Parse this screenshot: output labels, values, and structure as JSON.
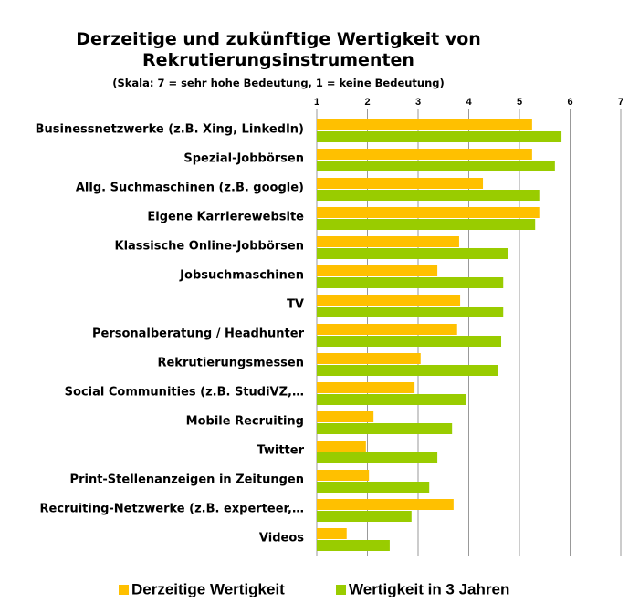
{
  "chart_data": {
    "type": "bar",
    "orientation": "horizontal",
    "title": "Derzeitige und zukünftige Wertigkeit von Rekrutierungsinstrumenten",
    "subtitle": "(Skala: 7 = sehr hohe Bedeutung, 1 = keine Bedeutung)",
    "categories": [
      "Businessnetzwerke (z.B. Xing, LinkedIn)",
      "Spezial-Jobbörsen",
      "Allg. Suchmaschinen (z.B. google)",
      "Eigene Karrierewebsite",
      "Klassische Online-Jobbörsen",
      "Jobsuchmaschinen",
      "TV",
      "Personalberatung / Headhunter",
      "Rekrutierungsmessen",
      "Social Communities (z.B. StudiVZ,…",
      "Mobile Recruiting",
      "Twitter",
      "Print-Stellenanzeigen in Zeitungen",
      "Recruiting-Netzwerke (z.B. experteer,…",
      "Videos"
    ],
    "series": [
      {
        "name": "Derzeitige Wertigkeit",
        "color": "#FFC000",
        "values": [
          5.25,
          5.25,
          4.28,
          5.41,
          3.81,
          3.38,
          3.83,
          3.77,
          3.05,
          2.93,
          2.12,
          1.97,
          2.03,
          3.7,
          1.59
        ]
      },
      {
        "name": "Wertigkeit in 3 Jahren",
        "color": "#99CC00",
        "values": [
          5.83,
          5.7,
          5.41,
          5.31,
          4.78,
          4.68,
          4.68,
          4.64,
          4.57,
          3.94,
          3.67,
          3.38,
          3.22,
          2.87,
          2.44
        ]
      }
    ],
    "xlim": [
      1,
      7
    ],
    "xticks": [
      1,
      2,
      3,
      4,
      5,
      6,
      7
    ],
    "grid": true,
    "legend": "bottom"
  }
}
